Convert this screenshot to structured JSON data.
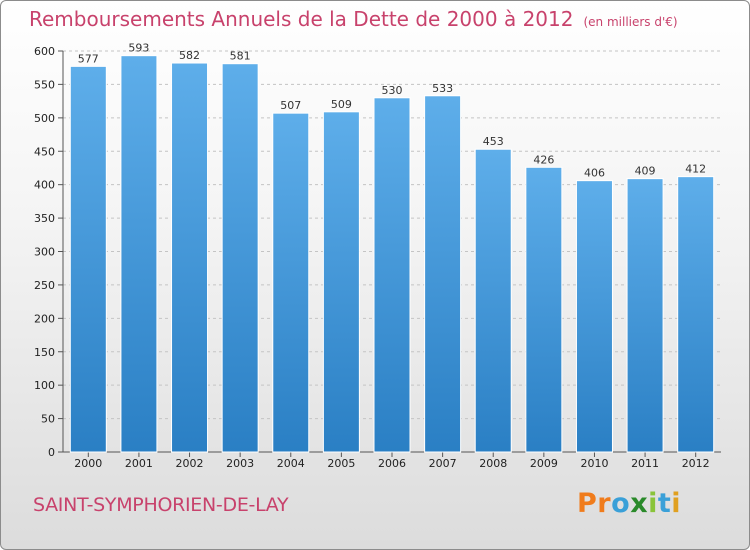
{
  "chart_data": {
    "type": "bar",
    "title": "Remboursements Annuels de la Dette de 2000 à 2012",
    "unit_note": "(en milliers d'€)",
    "categories": [
      "2000",
      "2001",
      "2002",
      "2003",
      "2004",
      "2005",
      "2006",
      "2007",
      "2008",
      "2009",
      "2010",
      "2011",
      "2012"
    ],
    "values": [
      577,
      593,
      582,
      581,
      507,
      509,
      530,
      533,
      453,
      426,
      406,
      409,
      412
    ],
    "ylim": [
      0,
      600
    ],
    "yticks": [
      0,
      50,
      100,
      150,
      200,
      250,
      300,
      350,
      400,
      450,
      500,
      550,
      600
    ],
    "grid": true,
    "bar_color": "#3d95d8"
  },
  "location": "SAINT-SYMPHORIEN-DE-LAY",
  "brand": {
    "name": "Proxiti",
    "letters": [
      "P",
      "r",
      "o",
      "x",
      "i",
      "t",
      "i"
    ],
    "colors": [
      "#f07c1c",
      "#f07c1c",
      "#3aa0d8",
      "#2a8a2a",
      "#8ac43a",
      "#3aa0d8",
      "#e0a020"
    ]
  }
}
